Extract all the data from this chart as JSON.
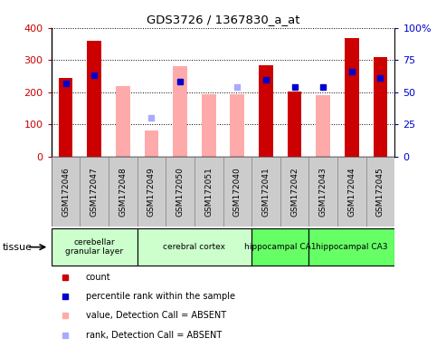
{
  "title": "GDS3726 / 1367830_a_at",
  "samples": [
    "GSM172046",
    "GSM172047",
    "GSM172048",
    "GSM172049",
    "GSM172050",
    "GSM172051",
    "GSM172040",
    "GSM172041",
    "GSM172042",
    "GSM172043",
    "GSM172044",
    "GSM172045"
  ],
  "count_values": [
    245,
    360,
    null,
    null,
    null,
    null,
    null,
    283,
    201,
    null,
    368,
    310
  ],
  "count_color": "#cc0000",
  "absent_value_values": [
    null,
    null,
    220,
    80,
    280,
    195,
    193,
    null,
    null,
    190,
    null,
    null
  ],
  "absent_value_color": "#ffaaaa",
  "percentile_rank_values": [
    57,
    63,
    null,
    null,
    58,
    null,
    null,
    60,
    54,
    54,
    66,
    61
  ],
  "percentile_rank_color": "#0000cc",
  "absent_rank_values": [
    null,
    null,
    null,
    30,
    null,
    null,
    54,
    null,
    null,
    null,
    null,
    null
  ],
  "absent_rank_color": "#aaaaff",
  "ylim_left": [
    0,
    400
  ],
  "ylim_right": [
    0,
    100
  ],
  "yticks_left": [
    0,
    100,
    200,
    300,
    400
  ],
  "yticks_right": [
    0,
    25,
    50,
    75,
    100
  ],
  "yticklabels_left": [
    "0",
    "100",
    "200",
    "300",
    "400"
  ],
  "yticklabels_right": [
    "0",
    "25",
    "50",
    "75",
    "100%"
  ],
  "tissue_groups": [
    {
      "label": "cerebellar\ngranular layer",
      "samples": [
        "GSM172046",
        "GSM172047",
        "GSM172048"
      ],
      "color": "#ccffcc"
    },
    {
      "label": "cerebral cortex",
      "samples": [
        "GSM172049",
        "GSM172050",
        "GSM172051",
        "GSM172040"
      ],
      "color": "#ccffcc"
    },
    {
      "label": "hippocampal CA1",
      "samples": [
        "GSM172041",
        "GSM172042"
      ],
      "color": "#66ff66"
    },
    {
      "label": "hippocampal CA3",
      "samples": [
        "GSM172043",
        "GSM172044",
        "GSM172045"
      ],
      "color": "#66ff66"
    }
  ],
  "legend_items": [
    {
      "label": "count",
      "color": "#cc0000"
    },
    {
      "label": "percentile rank within the sample",
      "color": "#0000cc"
    },
    {
      "label": "value, Detection Call = ABSENT",
      "color": "#ffaaaa"
    },
    {
      "label": "rank, Detection Call = ABSENT",
      "color": "#aaaaff"
    }
  ],
  "bar_width": 0.5,
  "rank_scale": 4.0,
  "tissue_label": "tissue",
  "fig_width": 4.93,
  "fig_height": 3.84,
  "xlabel_color": "#333333",
  "label_bg_color": "#cccccc"
}
